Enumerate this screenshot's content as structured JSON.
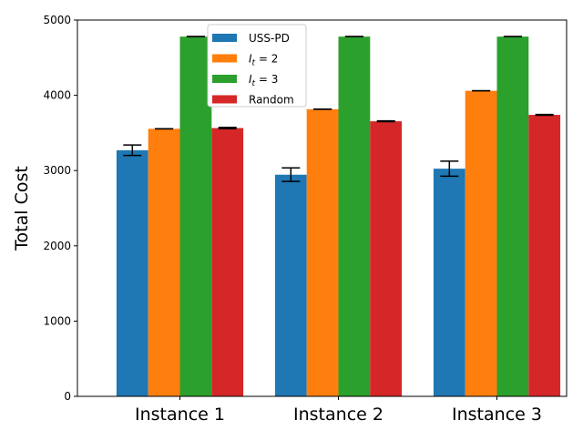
{
  "chart_data": {
    "type": "bar",
    "title": "",
    "xlabel": "",
    "ylabel": "Total Cost",
    "categories": [
      "Instance 1",
      "Instance 2",
      "Instance 3"
    ],
    "ylim": [
      0,
      5000
    ],
    "yticks": [
      0,
      1000,
      2000,
      3000,
      4000,
      5000
    ],
    "grid": false,
    "legend_position": "top-center",
    "series": [
      {
        "name": "USS-PD",
        "legend_label": "USS-PD",
        "color": "#1f77b4",
        "values": [
          3270,
          2945,
          3025
        ],
        "errors": [
          70,
          90,
          100
        ]
      },
      {
        "name": "I_t = 2",
        "legend_label": "I",
        "legend_sub": "t",
        "legend_rest": " = 2",
        "color": "#ff7f0e",
        "values": [
          3555,
          3815,
          4060
        ],
        "errors": [
          0,
          0,
          0
        ]
      },
      {
        "name": "I_t = 3",
        "legend_label": "I",
        "legend_sub": "t",
        "legend_rest": " = 3",
        "color": "#2ca02c",
        "values": [
          4780,
          4780,
          4780
        ],
        "errors": [
          0,
          0,
          0
        ]
      },
      {
        "name": "Random",
        "legend_label": "Random",
        "color": "#d62728",
        "values": [
          3565,
          3655,
          3740
        ],
        "errors": [
          8,
          5,
          5
        ]
      }
    ]
  }
}
